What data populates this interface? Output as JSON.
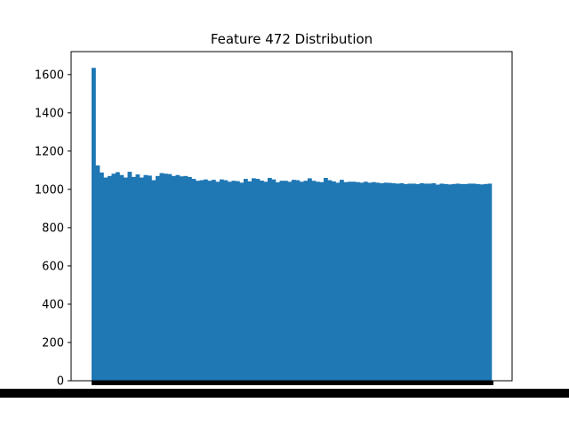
{
  "chart_data": {
    "type": "bar",
    "title": "Feature 472 Distribution",
    "xlabel": "",
    "ylabel": "",
    "ylim": [
      0,
      1720
    ],
    "yticks": [
      0,
      200,
      400,
      600,
      800,
      1000,
      1200,
      1400,
      1600
    ],
    "grid": false,
    "legend": "none",
    "bar_color": "#1f77b4",
    "values": [
      1635,
      1125,
      1088,
      1062,
      1070,
      1082,
      1090,
      1075,
      1062,
      1092,
      1065,
      1078,
      1062,
      1075,
      1072,
      1048,
      1070,
      1085,
      1082,
      1080,
      1070,
      1075,
      1068,
      1070,
      1065,
      1055,
      1045,
      1048,
      1052,
      1045,
      1050,
      1040,
      1052,
      1048,
      1040,
      1045,
      1043,
      1035,
      1055,
      1042,
      1058,
      1055,
      1046,
      1040,
      1060,
      1052,
      1037,
      1045,
      1045,
      1040,
      1050,
      1048,
      1040,
      1045,
      1058,
      1045,
      1040,
      1038,
      1060,
      1048,
      1042,
      1035,
      1050,
      1038,
      1040,
      1040,
      1038,
      1035,
      1040,
      1035,
      1038,
      1035,
      1032,
      1035,
      1034,
      1032,
      1030,
      1032,
      1028,
      1030,
      1030,
      1028,
      1032,
      1030,
      1030,
      1032,
      1025,
      1030,
      1028,
      1026,
      1028,
      1030,
      1028,
      1028,
      1030,
      1030,
      1028,
      1026,
      1028,
      1030
    ]
  }
}
